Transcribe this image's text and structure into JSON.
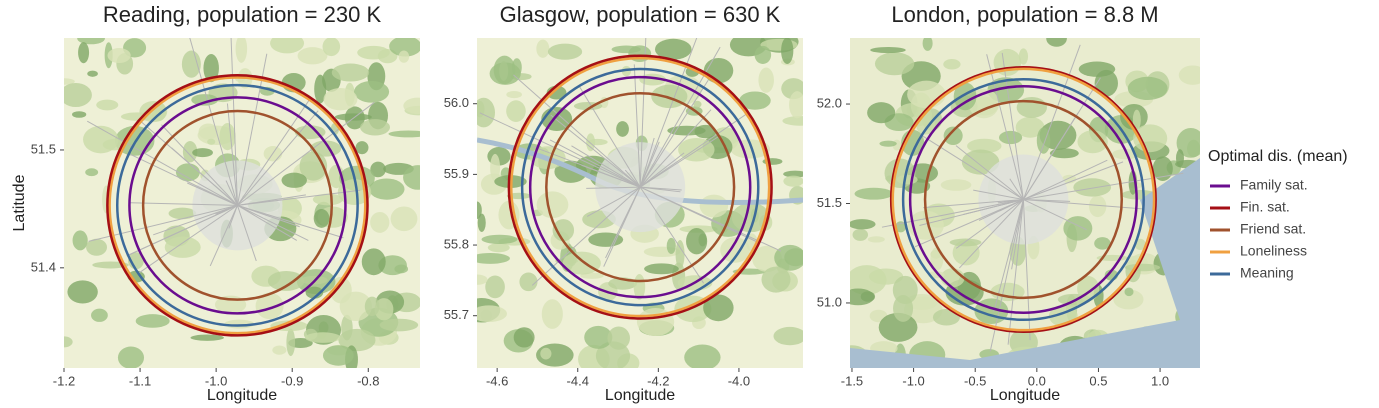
{
  "chart_data": [
    {
      "type": "circle-map",
      "title": "Reading, population = 230 K",
      "xlabel": "Longitude",
      "ylabel": "Latitude",
      "xlim": [
        -1.2,
        -0.732
      ],
      "ylim": [
        51.315,
        51.595
      ],
      "xticks": [
        -1.2,
        -1.1,
        {
          "value": -1,
          "label": "-1.0"
        },
        -0.9,
        -0.8
      ],
      "yticks": [
        51.4,
        51.5
      ],
      "center": {
        "x": -0.972,
        "y": 51.453
      },
      "series": [
        {
          "name": "Friend sat.",
          "color": "#a0522d",
          "values": [
            0.124
          ]
        },
        {
          "name": "Family sat.",
          "color": "#6a0d8f",
          "values": [
            0.142
          ]
        },
        {
          "name": "Meaning",
          "color": "#3c6a9a",
          "values": [
            0.158
          ]
        },
        {
          "name": "Loneliness",
          "color": "#f0a040",
          "values": [
            0.168
          ]
        },
        {
          "name": "Fin. sat.",
          "color": "#a50f15",
          "values": [
            0.171
          ]
        }
      ]
    },
    {
      "type": "circle-map",
      "title": "Glasgow, population = 630 K",
      "xlabel": "Longitude",
      "xlim": [
        -4.65,
        -3.841
      ],
      "ylim": [
        55.626,
        56.093
      ],
      "xticks": [
        -4.6,
        -4.4,
        -4.2,
        {
          "value": -4,
          "label": "-4.0"
        }
      ],
      "yticks": [
        55.7,
        55.8,
        55.9,
        {
          "value": 56,
          "label": "56.0"
        }
      ],
      "center": {
        "x": -4.245,
        "y": 55.882
      },
      "series": [
        {
          "name": "Friend sat.",
          "color": "#a0522d",
          "values": [
            0.233
          ]
        },
        {
          "name": "Family sat.",
          "color": "#6a0d8f",
          "values": [
            0.273
          ]
        },
        {
          "name": "Meaning",
          "color": "#3c6a9a",
          "values": [
            0.293
          ]
        },
        {
          "name": "Loneliness",
          "color": "#f0a040",
          "values": [
            0.32
          ]
        },
        {
          "name": "Fin. sat.",
          "color": "#a50f15",
          "values": [
            0.326
          ]
        }
      ]
    },
    {
      "type": "circle-map",
      "title": "London, population = 8.8 M",
      "xlabel": "Longitude",
      "legend_title": "Optimal dis. (mean)",
      "xlim": [
        -1.516,
        1.324
      ],
      "ylim": [
        50.673,
        52.332
      ],
      "xticks": [
        -1.5,
        {
          "value": -1,
          "label": "-1.0"
        },
        -0.5,
        {
          "value": 0,
          "label": "0.0"
        },
        0.5,
        {
          "value": 1,
          "label": "1.0"
        }
      ],
      "yticks": [
        {
          "value": 51,
          "label": "51.0"
        },
        51.5,
        {
          "value": 52,
          "label": "52.0"
        }
      ],
      "center": {
        "x": -0.109,
        "y": 51.52
      },
      "series": [
        {
          "name": "Family sat.",
          "color": "#6a0d8f",
          "values": [
            0.919
          ]
        },
        {
          "name": "Fin. sat.",
          "color": "#a50f15",
          "values": [
            1.073
          ]
        },
        {
          "name": "Friend sat.",
          "color": "#a0522d",
          "values": [
            0.798
          ]
        },
        {
          "name": "Loneliness",
          "color": "#f0a040",
          "values": [
            1.06
          ]
        },
        {
          "name": "Meaning",
          "color": "#3c6a9a",
          "values": [
            0.976
          ]
        }
      ]
    }
  ]
}
